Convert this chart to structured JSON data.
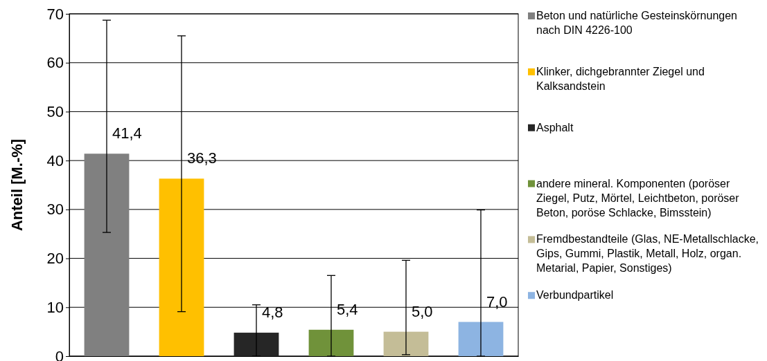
{
  "chart_data": {
    "type": "bar",
    "ylabel": "Anteil [M.-%]",
    "categories": [
      null,
      null,
      null,
      null,
      null,
      null
    ],
    "ylim": [
      0,
      70
    ],
    "yticks": [
      0,
      10,
      20,
      30,
      40,
      50,
      60,
      70
    ],
    "grid": "y",
    "legend": "right",
    "series": [
      {
        "name": "Beton und natürliche Gesteinskörnungen nach DIN 4226-100",
        "color": "#808080",
        "values": [
          41.4,
          null,
          null,
          null,
          null,
          null
        ],
        "errors": [
          [
            25.3,
            68.7
          ],
          null,
          null,
          null,
          null,
          null
        ],
        "value_labels": [
          "41,4",
          null,
          null,
          null,
          null,
          null
        ]
      },
      {
        "name": "Klinker, dichgebrannter Ziegel und Kalksandstein",
        "color": "#ffc000",
        "values": [
          null,
          36.3,
          null,
          null,
          null,
          null
        ],
        "errors": [
          null,
          [
            9.1,
            65.5
          ],
          null,
          null,
          null,
          null
        ],
        "value_labels": [
          null,
          "36,3",
          null,
          null,
          null,
          null
        ]
      },
      {
        "name": "Asphalt",
        "color": "#262626",
        "values": [
          null,
          null,
          4.8,
          null,
          null,
          null
        ],
        "errors": [
          null,
          null,
          [
            0,
            10.5
          ],
          null,
          null,
          null
        ],
        "value_labels": [
          null,
          null,
          "4,8",
          null,
          null,
          null
        ]
      },
      {
        "name": "andere mineral. Komponenten (poröser Ziegel, Putz, Mörtel, Leichtbeton, poröser Beton, poröse Schlacke, Bimsstein)",
        "color": "#70923a",
        "values": [
          null,
          null,
          null,
          5.4,
          null,
          null
        ],
        "errors": [
          null,
          null,
          null,
          [
            0,
            16.5
          ],
          null,
          null
        ],
        "value_labels": [
          null,
          null,
          null,
          "5,4",
          null,
          null
        ]
      },
      {
        "name": "Fremdbestandteile (Glas, NE-Metallschlacke, Gips, Gummi, Plastik, Metall, Holz, organ. Metarial, Papier, Sonstiges)",
        "color": "#c4bd97",
        "values": [
          null,
          null,
          null,
          null,
          5.0,
          null
        ],
        "errors": [
          null,
          null,
          null,
          null,
          [
            0.3,
            19.6
          ],
          null
        ],
        "value_labels": [
          null,
          null,
          null,
          null,
          "5,0",
          null
        ]
      },
      {
        "name": "Verbundpartikel",
        "color": "#8db4e2",
        "values": [
          null,
          null,
          null,
          null,
          null,
          7.0
        ],
        "errors": [
          null,
          null,
          null,
          null,
          null,
          [
            0,
            29.9
          ]
        ],
        "value_labels": [
          null,
          null,
          null,
          null,
          null,
          "7,0"
        ]
      }
    ]
  }
}
